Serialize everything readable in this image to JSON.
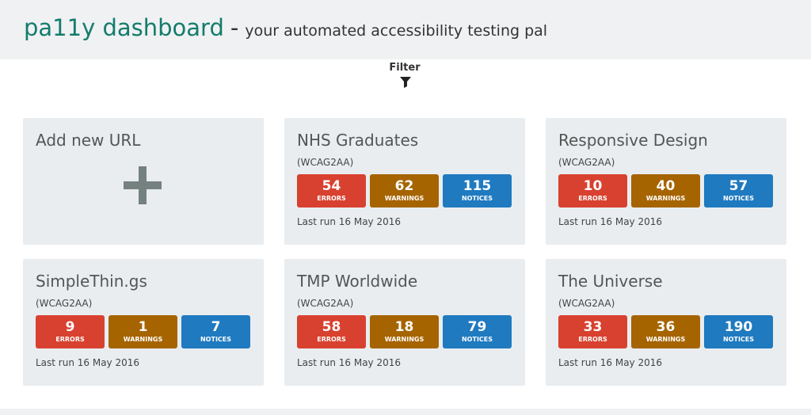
{
  "header": {
    "title": "pa11y dashboard",
    "separator": "-",
    "subtitle": "your automated accessibility testing pal"
  },
  "filter": {
    "label": "Filter"
  },
  "add_card": {
    "label": "Add new URL"
  },
  "labels": {
    "errors": "ERRORS",
    "warnings": "WARNINGS",
    "notices": "NOTICES"
  },
  "tasks": [
    {
      "name": "NHS Graduates",
      "standard": "(WCAG2AA)",
      "errors": 54,
      "warnings": 62,
      "notices": 115,
      "last_run": "Last run 16 May 2016"
    },
    {
      "name": "Responsive Design",
      "standard": "(WCAG2AA)",
      "errors": 10,
      "warnings": 40,
      "notices": 57,
      "last_run": "Last run 16 May 2016"
    },
    {
      "name": "SimpleThin.gs",
      "standard": "(WCAG2AA)",
      "errors": 9,
      "warnings": 1,
      "notices": 7,
      "last_run": "Last run 16 May 2016"
    },
    {
      "name": "TMP Worldwide",
      "standard": "(WCAG2AA)",
      "errors": 58,
      "warnings": 18,
      "notices": 79,
      "last_run": "Last run 16 May 2016"
    },
    {
      "name": "The Universe",
      "standard": "(WCAG2AA)",
      "errors": 33,
      "warnings": 36,
      "notices": 190,
      "last_run": "Last run 16 May 2016"
    }
  ]
}
